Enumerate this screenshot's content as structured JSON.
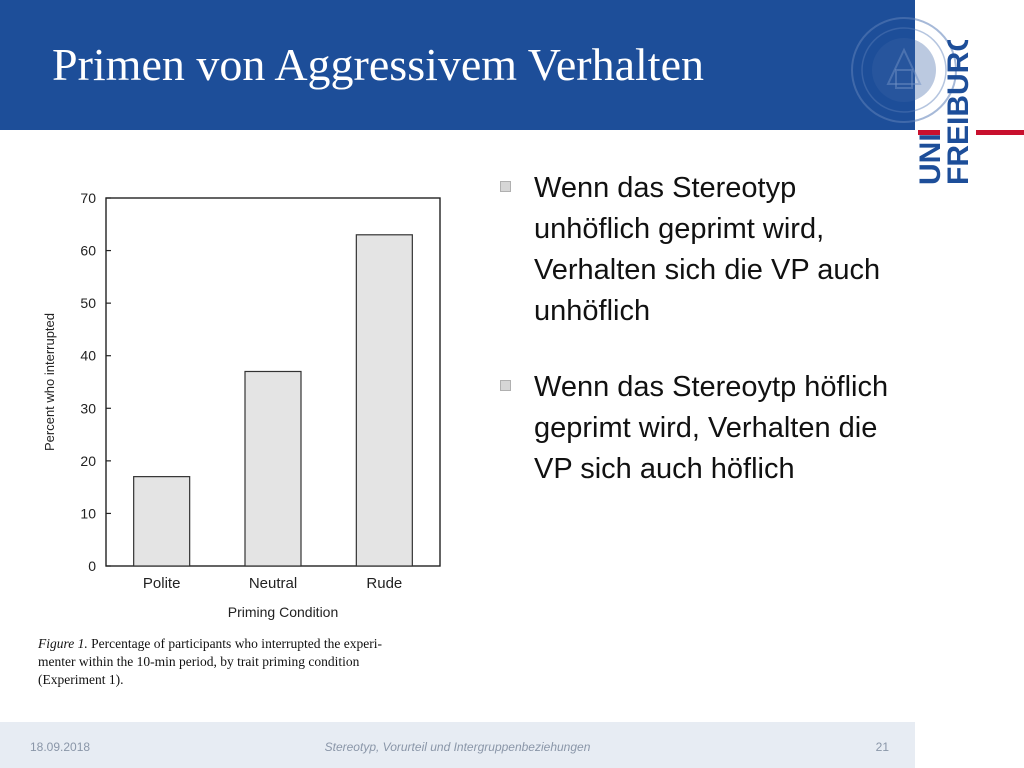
{
  "slide": {
    "title": "Primen von Aggressivem Verhalten",
    "bullets": [
      "Wenn das Stereotyp unhöflich geprimt wird, Verhalten sich die VP auch unhöflich",
      "Wenn das Stereoytp höflich geprimt wird, Verhalten die VP sich auch höflich"
    ]
  },
  "logo": {
    "line1": "UNI",
    "line2": "FREIBURG",
    "accent_color": "#c8102e",
    "text_color": "#1d4e99"
  },
  "footer": {
    "date": "18.09.2018",
    "center": "Stereotyp, Vorurteil und Intergruppenbeziehungen",
    "page": "21"
  },
  "colors": {
    "header_bg": "#1d4e99",
    "footer_bg": "#e7ecf3",
    "bar_fill": "#e4e4e4"
  },
  "chart_data": {
    "type": "bar",
    "categories": [
      "Polite",
      "Neutral",
      "Rude"
    ],
    "values": [
      17,
      37,
      63
    ],
    "xlabel": "Priming Condition",
    "ylabel": "Percent who interrupted",
    "ylim": [
      0,
      70
    ],
    "yticks": [
      "0",
      "10",
      "20",
      "30",
      "40",
      "50",
      "60",
      "70"
    ],
    "grid": false,
    "caption": {
      "label": "Figure 1.",
      "lines": [
        "Percentage of participants who interrupted the experi-",
        "menter within the 10-min period, by trait priming condition",
        "(Experiment 1)."
      ]
    }
  }
}
